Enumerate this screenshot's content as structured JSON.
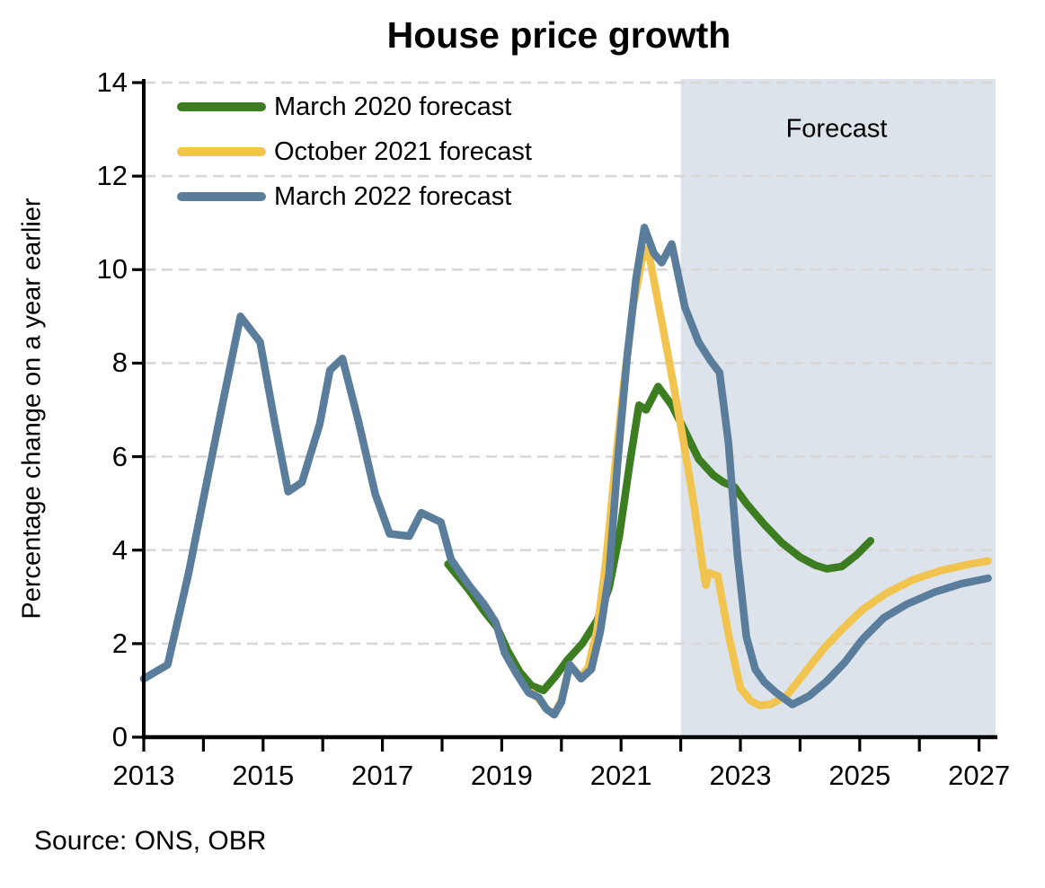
{
  "title": "House price growth",
  "source_note": "Source: ONS, OBR",
  "colors": {
    "axis": "#000000",
    "gridline": "#d8d8d8",
    "forecast_band": "#dde3ea",
    "green_series": "#3c7d21",
    "yellow_series": "#f1c44f",
    "blue_series": "#5a7d9c"
  },
  "chart_data": {
    "type": "line",
    "title": "House price growth",
    "xlabel": "",
    "ylabel": "Percentage change on a year earlier",
    "ylim": [
      0,
      14
    ],
    "y_ticks": [
      0,
      2,
      4,
      6,
      8,
      10,
      12,
      14
    ],
    "xlim": [
      2013,
      2027.3
    ],
    "x_minor_tick_years": [
      2013,
      2014,
      2015,
      2016,
      2017,
      2018,
      2019,
      2020,
      2021,
      2022,
      2023,
      2024,
      2025,
      2026,
      2027
    ],
    "x_label_years": [
      2013,
      2015,
      2017,
      2019,
      2021,
      2023,
      2025,
      2027
    ],
    "grid": "horizontal-dashed",
    "legend_position": "top-left-inside",
    "forecast_band": {
      "label": "Forecast",
      "start": 2022,
      "end": 2027.3
    },
    "series": [
      {
        "name": "March 2020 forecast",
        "color": "#3c7d21",
        "points": [
          [
            2018.1,
            3.7
          ],
          [
            2018.45,
            3.15
          ],
          [
            2018.7,
            2.7
          ],
          [
            2018.92,
            2.35
          ],
          [
            2019.1,
            1.85
          ],
          [
            2019.3,
            1.4
          ],
          [
            2019.5,
            1.1
          ],
          [
            2019.7,
            1.0
          ],
          [
            2019.9,
            1.3
          ],
          [
            2020.1,
            1.65
          ],
          [
            2020.35,
            2.0
          ],
          [
            2020.6,
            2.5
          ],
          [
            2020.8,
            3.2
          ],
          [
            2020.97,
            4.3
          ],
          [
            2021.15,
            5.9
          ],
          [
            2021.3,
            7.1
          ],
          [
            2021.42,
            7.0
          ],
          [
            2021.62,
            7.5
          ],
          [
            2021.85,
            7.1
          ],
          [
            2022.05,
            6.6
          ],
          [
            2022.3,
            5.95
          ],
          [
            2022.55,
            5.6
          ],
          [
            2022.72,
            5.45
          ],
          [
            2022.9,
            5.35
          ],
          [
            2023.1,
            5.0
          ],
          [
            2023.4,
            4.55
          ],
          [
            2023.7,
            4.15
          ],
          [
            2024.0,
            3.85
          ],
          [
            2024.25,
            3.68
          ],
          [
            2024.45,
            3.6
          ],
          [
            2024.7,
            3.65
          ],
          [
            2024.95,
            3.9
          ],
          [
            2025.18,
            4.2
          ]
        ]
      },
      {
        "name": "October 2021 forecast",
        "color": "#f1c44f",
        "points": [
          [
            2019.5,
            0.95
          ],
          [
            2019.62,
            0.82
          ],
          [
            2019.75,
            0.6
          ],
          [
            2019.88,
            0.5
          ],
          [
            2020.0,
            0.78
          ],
          [
            2020.14,
            1.55
          ],
          [
            2020.33,
            1.28
          ],
          [
            2020.45,
            1.5
          ],
          [
            2020.6,
            2.3
          ],
          [
            2020.75,
            3.8
          ],
          [
            2020.9,
            5.8
          ],
          [
            2021.05,
            7.6
          ],
          [
            2021.2,
            9.2
          ],
          [
            2021.35,
            10.2
          ],
          [
            2021.45,
            10.45
          ],
          [
            2021.65,
            9.1
          ],
          [
            2021.87,
            7.6
          ],
          [
            2022.05,
            6.3
          ],
          [
            2022.22,
            5.0
          ],
          [
            2022.38,
            3.55
          ],
          [
            2022.42,
            3.25
          ],
          [
            2022.46,
            3.52
          ],
          [
            2022.62,
            3.45
          ],
          [
            2022.8,
            2.2
          ],
          [
            2023.0,
            1.05
          ],
          [
            2023.17,
            0.78
          ],
          [
            2023.32,
            0.68
          ],
          [
            2023.5,
            0.7
          ],
          [
            2023.77,
            0.88
          ],
          [
            2024.0,
            1.25
          ],
          [
            2024.4,
            1.9
          ],
          [
            2024.7,
            2.3
          ],
          [
            2025.05,
            2.73
          ],
          [
            2025.45,
            3.08
          ],
          [
            2025.9,
            3.37
          ],
          [
            2026.35,
            3.56
          ],
          [
            2026.8,
            3.69
          ],
          [
            2027.15,
            3.77
          ]
        ]
      },
      {
        "name": "March 2022 forecast",
        "color": "#5a7d9c",
        "points": [
          [
            2013.0,
            1.25
          ],
          [
            2013.4,
            1.55
          ],
          [
            2013.75,
            3.5
          ],
          [
            2014.0,
            5.1
          ],
          [
            2014.3,
            7.0
          ],
          [
            2014.62,
            9.0
          ],
          [
            2014.95,
            8.45
          ],
          [
            2015.2,
            6.7
          ],
          [
            2015.42,
            5.25
          ],
          [
            2015.65,
            5.45
          ],
          [
            2015.95,
            6.7
          ],
          [
            2016.12,
            7.85
          ],
          [
            2016.33,
            8.1
          ],
          [
            2016.6,
            6.75
          ],
          [
            2016.88,
            5.2
          ],
          [
            2017.12,
            4.35
          ],
          [
            2017.45,
            4.3
          ],
          [
            2017.65,
            4.8
          ],
          [
            2017.98,
            4.6
          ],
          [
            2018.15,
            3.8
          ],
          [
            2018.45,
            3.25
          ],
          [
            2018.7,
            2.85
          ],
          [
            2018.9,
            2.45
          ],
          [
            2019.05,
            1.8
          ],
          [
            2019.25,
            1.35
          ],
          [
            2019.45,
            0.95
          ],
          [
            2019.62,
            0.85
          ],
          [
            2019.75,
            0.6
          ],
          [
            2019.88,
            0.48
          ],
          [
            2020.0,
            0.75
          ],
          [
            2020.14,
            1.55
          ],
          [
            2020.33,
            1.25
          ],
          [
            2020.5,
            1.45
          ],
          [
            2020.65,
            2.25
          ],
          [
            2020.8,
            3.5
          ],
          [
            2020.95,
            6.0
          ],
          [
            2021.1,
            8.1
          ],
          [
            2021.25,
            9.8
          ],
          [
            2021.39,
            10.9
          ],
          [
            2021.55,
            10.35
          ],
          [
            2021.68,
            10.15
          ],
          [
            2021.85,
            10.55
          ],
          [
            2022.07,
            9.2
          ],
          [
            2022.3,
            8.45
          ],
          [
            2022.5,
            8.05
          ],
          [
            2022.65,
            7.8
          ],
          [
            2022.8,
            6.3
          ],
          [
            2022.95,
            3.9
          ],
          [
            2023.1,
            2.15
          ],
          [
            2023.25,
            1.45
          ],
          [
            2023.4,
            1.18
          ],
          [
            2023.6,
            0.95
          ],
          [
            2023.87,
            0.7
          ],
          [
            2024.15,
            0.88
          ],
          [
            2024.45,
            1.2
          ],
          [
            2024.75,
            1.6
          ],
          [
            2025.05,
            2.1
          ],
          [
            2025.4,
            2.55
          ],
          [
            2025.8,
            2.85
          ],
          [
            2026.25,
            3.1
          ],
          [
            2026.7,
            3.28
          ],
          [
            2027.15,
            3.4
          ]
        ]
      }
    ]
  },
  "legend": {
    "items": [
      {
        "label": "March 2020 forecast"
      },
      {
        "label": "October 2021 forecast"
      },
      {
        "label": "March 2022 forecast"
      }
    ]
  }
}
